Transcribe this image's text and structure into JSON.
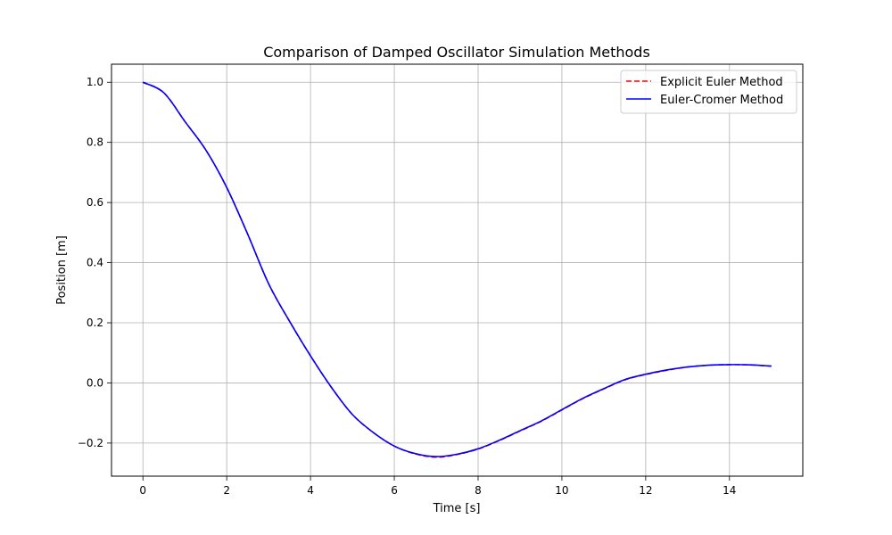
{
  "chart_data": {
    "type": "line",
    "title": "Comparison of Damped Oscillator Simulation Methods",
    "xlabel": "Time [s]",
    "ylabel": "Position [m]",
    "xlim": [
      -0.75,
      15.75
    ],
    "ylim": [
      -0.31,
      1.06
    ],
    "xticks": [
      0,
      2,
      4,
      6,
      8,
      10,
      12,
      14
    ],
    "yticks": [
      -0.2,
      0.0,
      0.2,
      0.4,
      0.6,
      0.8,
      1.0
    ],
    "xtick_labels": [
      "0",
      "2",
      "4",
      "6",
      "8",
      "10",
      "12",
      "14"
    ],
    "ytick_labels": [
      "−0.2",
      "0.0",
      "0.2",
      "0.4",
      "0.6",
      "0.8",
      "1.0"
    ],
    "grid": true,
    "legend_position": "top-right",
    "x": [
      0,
      0.5,
      1,
      1.5,
      2,
      2.5,
      3,
      3.5,
      4,
      4.5,
      5,
      5.5,
      6,
      6.5,
      7,
      7.5,
      8,
      8.5,
      9,
      9.5,
      10,
      10.5,
      11,
      11.5,
      12,
      12.5,
      13,
      13.5,
      14,
      14.5,
      15
    ],
    "series": [
      {
        "name": "Explicit Euler Method",
        "color": "#ff0000",
        "style": "dashed",
        "values": [
          1.0,
          0.965,
          0.87,
          0.775,
          0.65,
          0.495,
          0.33,
          0.205,
          0.09,
          -0.015,
          -0.105,
          -0.165,
          -0.21,
          -0.236,
          -0.247,
          -0.238,
          -0.22,
          -0.192,
          -0.16,
          -0.128,
          -0.09,
          -0.052,
          -0.02,
          0.01,
          0.028,
          0.042,
          0.053,
          0.059,
          0.061,
          0.06,
          0.056
        ]
      },
      {
        "name": "Euler-Cromer Method",
        "color": "#0000ff",
        "style": "solid",
        "values": [
          1.0,
          0.965,
          0.87,
          0.775,
          0.65,
          0.495,
          0.33,
          0.205,
          0.09,
          -0.015,
          -0.105,
          -0.165,
          -0.21,
          -0.235,
          -0.245,
          -0.237,
          -0.219,
          -0.191,
          -0.159,
          -0.127,
          -0.089,
          -0.051,
          -0.019,
          0.011,
          0.029,
          0.043,
          0.053,
          0.059,
          0.061,
          0.06,
          0.056
        ]
      }
    ]
  }
}
